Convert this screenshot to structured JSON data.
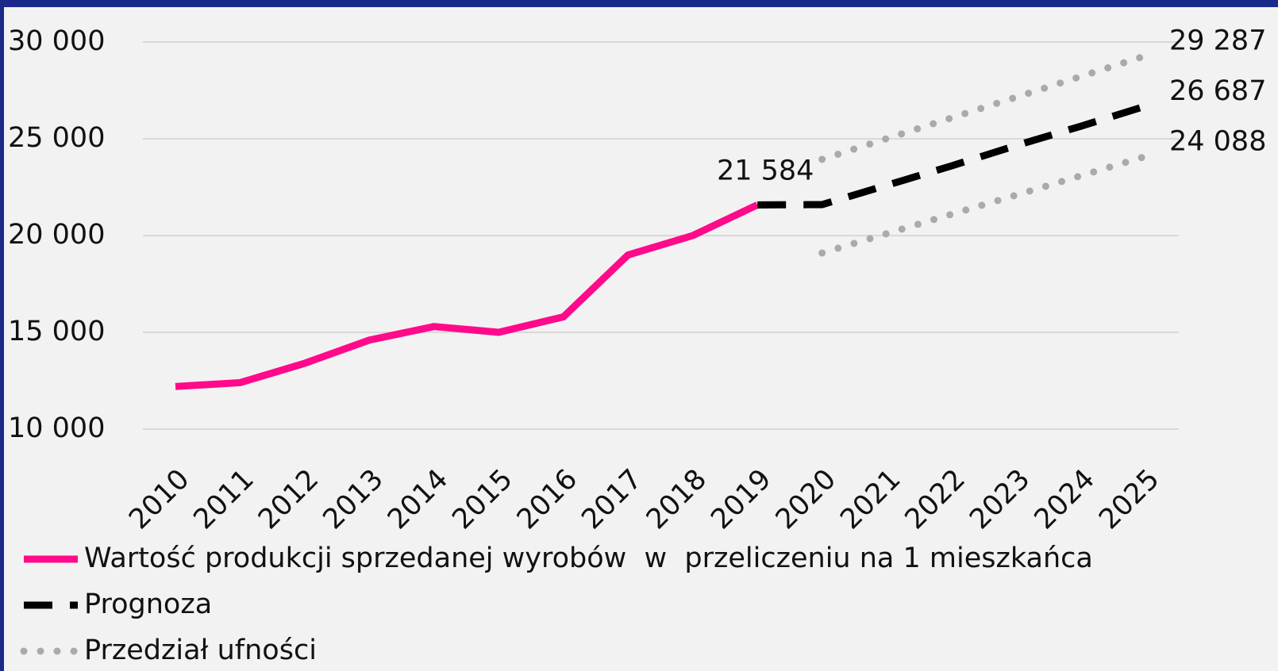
{
  "chart_data": {
    "type": "line",
    "categories": [
      "2010",
      "2011",
      "2012",
      "2013",
      "2014",
      "2015",
      "2016",
      "2017",
      "2018",
      "2019",
      "2020",
      "2021",
      "2022",
      "2023",
      "2024",
      "2025"
    ],
    "series": [
      {
        "name": "Wartość produkcji sprzedanej wyrobów  w  przeliczeniu na 1 mieszkańca",
        "color": "#ff0a8a",
        "style": "solid",
        "values": [
          12200,
          12400,
          13400,
          14600,
          15300,
          15000,
          15800,
          19000,
          20000,
          21584,
          null,
          null,
          null,
          null,
          null,
          null
        ],
        "value_labels": [
          null,
          null,
          null,
          null,
          null,
          null,
          null,
          null,
          null,
          "21 584",
          null,
          null,
          null,
          null,
          null,
          null
        ]
      },
      {
        "name": "Prognoza",
        "color": "#000000",
        "style": "dashed",
        "values": [
          null,
          null,
          null,
          null,
          null,
          null,
          null,
          null,
          null,
          21584,
          21600,
          22600,
          23600,
          24650,
          25650,
          26687
        ],
        "value_labels": [
          null,
          null,
          null,
          null,
          null,
          null,
          null,
          null,
          null,
          null,
          null,
          null,
          null,
          null,
          null,
          "26 687"
        ]
      },
      {
        "name": "Przedział ufności",
        "color": "#aaaaaa",
        "style": "dotted",
        "values": [
          null,
          null,
          null,
          null,
          null,
          null,
          null,
          null,
          null,
          null,
          23940,
          25010,
          26080,
          27150,
          28220,
          29287
        ],
        "value_labels": [
          null,
          null,
          null,
          null,
          null,
          null,
          null,
          null,
          null,
          null,
          null,
          null,
          null,
          null,
          null,
          "29 287"
        ]
      },
      {
        "name": "Przedział ufności",
        "color": "#aaaaaa",
        "style": "dotted",
        "legend": false,
        "values": [
          null,
          null,
          null,
          null,
          null,
          null,
          null,
          null,
          null,
          null,
          19100,
          20100,
          21100,
          22090,
          23090,
          24088
        ],
        "value_labels": [
          null,
          null,
          null,
          null,
          null,
          null,
          null,
          null,
          null,
          null,
          null,
          null,
          null,
          null,
          null,
          "24 088"
        ]
      }
    ],
    "ylim": [
      10000,
      30000
    ],
    "yticks": [
      {
        "value": 10000,
        "label": "10 000"
      },
      {
        "value": 15000,
        "label": "15 000"
      },
      {
        "value": 20000,
        "label": "20 000"
      },
      {
        "value": 25000,
        "label": "25 000"
      },
      {
        "value": 30000,
        "label": "30 000"
      }
    ],
    "grid": true,
    "legend": "bottom"
  }
}
